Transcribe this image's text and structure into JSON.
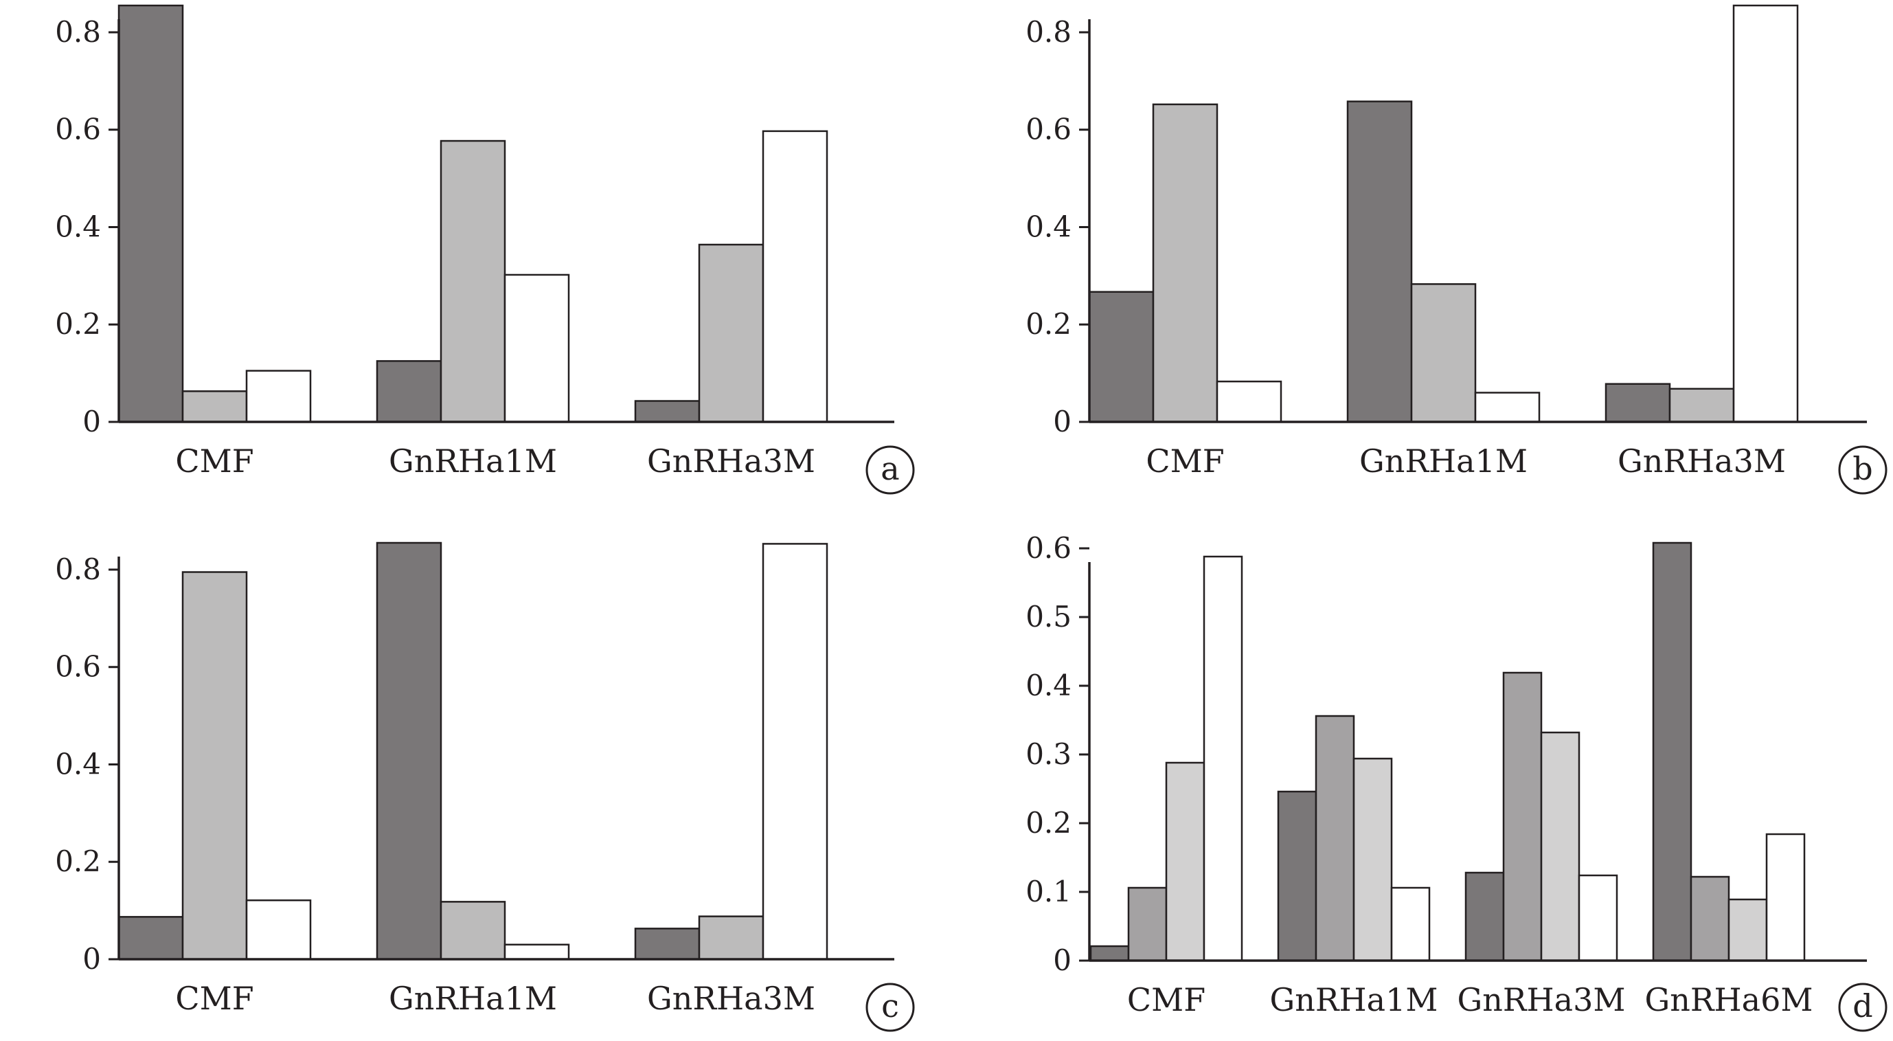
{
  "chart_data": [
    {
      "panel": "a",
      "type": "bar",
      "categories": [
        "CMF",
        "GnRHa1M",
        "GnRHa3M"
      ],
      "series": [
        {
          "values": [
            0.855,
            0.125,
            0.043
          ],
          "color": "#7a7778"
        },
        {
          "values": [
            0.063,
            0.577,
            0.364
          ],
          "color": "#bcbbbb"
        },
        {
          "values": [
            0.105,
            0.302,
            0.597
          ],
          "color": "#ffffff"
        }
      ],
      "ylim": [
        0,
        0.855
      ],
      "yticks": [
        0,
        0.2,
        0.4,
        0.6,
        0.8
      ],
      "ytick_labels": [
        "0",
        "0.2",
        "0.4",
        "0.6",
        "0.8"
      ]
    },
    {
      "panel": "b",
      "type": "bar",
      "categories": [
        "CMF",
        "GnRHa1M",
        "GnRHa3M"
      ],
      "series": [
        {
          "values": [
            0.267,
            0.658,
            0.078
          ],
          "color": "#7a7778"
        },
        {
          "values": [
            0.652,
            0.283,
            0.068
          ],
          "color": "#bcbbbb"
        },
        {
          "values": [
            0.083,
            0.06,
            0.855
          ],
          "color": "#ffffff"
        }
      ],
      "ylim": [
        0,
        0.855
      ],
      "yticks": [
        0,
        0.2,
        0.4,
        0.6,
        0.8
      ],
      "ytick_labels": [
        "0",
        "0.2",
        "0.4",
        "0.6",
        "0.8"
      ]
    },
    {
      "panel": "c",
      "type": "bar",
      "categories": [
        "CMF",
        "GnRHa1M",
        "GnRHa3M"
      ],
      "series": [
        {
          "values": [
            0.087,
            0.855,
            0.063
          ],
          "color": "#7a7778"
        },
        {
          "values": [
            0.795,
            0.118,
            0.088
          ],
          "color": "#bcbbbb"
        },
        {
          "values": [
            0.121,
            0.03,
            0.853
          ],
          "color": "#ffffff"
        }
      ],
      "ylim": [
        0,
        0.855
      ],
      "yticks": [
        0,
        0.2,
        0.4,
        0.6,
        0.8
      ],
      "ytick_labels": [
        "0",
        "0.2",
        "0.4",
        "0.6",
        "0.8"
      ]
    },
    {
      "panel": "d",
      "type": "bar",
      "categories": [
        "CMF",
        "GnRHa1M",
        "GnRHa3M",
        "GnRHa6M"
      ],
      "series": [
        {
          "values": [
            0.021,
            0.246,
            0.128,
            0.608
          ],
          "color": "#7a7778"
        },
        {
          "values": [
            0.106,
            0.356,
            0.419,
            0.122
          ],
          "color": "#a4a2a3"
        },
        {
          "values": [
            0.288,
            0.294,
            0.332,
            0.089
          ],
          "color": "#d2d1d1"
        },
        {
          "values": [
            0.588,
            0.106,
            0.124,
            0.184
          ],
          "color": "#ffffff"
        }
      ],
      "ylim": [
        0,
        0.6
      ],
      "yticks": [
        0,
        0.1,
        0.2,
        0.3,
        0.4,
        0.5,
        0.6
      ],
      "ytick_labels": [
        "0",
        "0.1",
        "0.2",
        "0.3",
        "0.4",
        "0.5",
        "0.6"
      ]
    }
  ],
  "style": {
    "axis_color": "#231f20",
    "bar_stroke": "#231f20"
  }
}
